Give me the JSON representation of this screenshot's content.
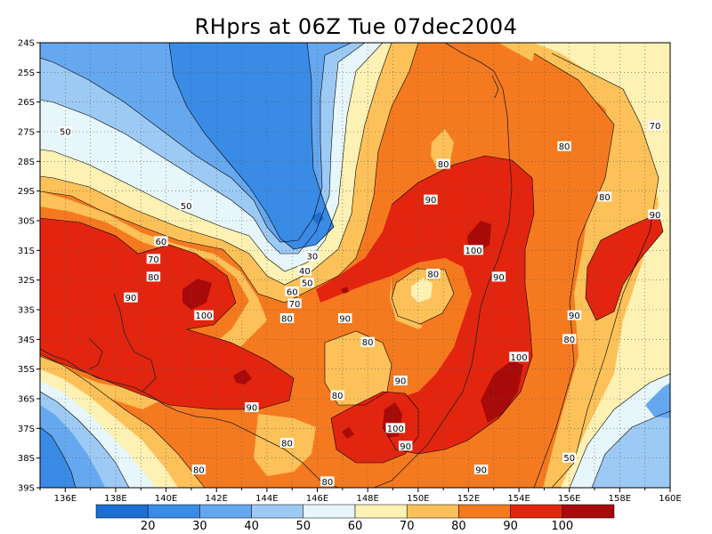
{
  "title": "RHprs at 06Z Tue 07dec2004",
  "map": {
    "lat_labels": [
      "24S",
      "25S",
      "26S",
      "27S",
      "28S",
      "29S",
      "30S",
      "31S",
      "32S",
      "33S",
      "34S",
      "35S",
      "36S",
      "37S",
      "38S",
      "39S"
    ],
    "lon_labels": [
      "136E",
      "138E",
      "140E",
      "142E",
      "144E",
      "146E",
      "148E",
      "150E",
      "152E",
      "154E",
      "156E",
      "158E",
      "160E"
    ],
    "contour_labels": [
      {
        "text": "50",
        "lon": 136.0,
        "lat": -27.0
      },
      {
        "text": "50",
        "lon": 140.8,
        "lat": -29.5
      },
      {
        "text": "60",
        "lon": 139.8,
        "lat": -30.7
      },
      {
        "text": "70",
        "lon": 139.5,
        "lat": -31.3
      },
      {
        "text": "80",
        "lon": 139.5,
        "lat": -31.9
      },
      {
        "text": "90",
        "lon": 138.6,
        "lat": -32.6
      },
      {
        "text": "100",
        "lon": 141.5,
        "lat": -33.2
      },
      {
        "text": "30",
        "lon": 145.8,
        "lat": -31.2
      },
      {
        "text": "40",
        "lon": 145.5,
        "lat": -31.7
      },
      {
        "text": "50",
        "lon": 145.6,
        "lat": -32.1
      },
      {
        "text": "60",
        "lon": 145.0,
        "lat": -32.4
      },
      {
        "text": "70",
        "lon": 145.1,
        "lat": -32.8
      },
      {
        "text": "80",
        "lon": 144.8,
        "lat": -33.3
      },
      {
        "text": "90",
        "lon": 147.1,
        "lat": -33.3
      },
      {
        "text": "80",
        "lon": 148.0,
        "lat": -34.1
      },
      {
        "text": "80",
        "lon": 146.8,
        "lat": -35.9
      },
      {
        "text": "90",
        "lon": 149.3,
        "lat": -35.4
      },
      {
        "text": "100",
        "lon": 149.1,
        "lat": -37.0
      },
      {
        "text": "90",
        "lon": 149.5,
        "lat": -37.6
      },
      {
        "text": "80",
        "lon": 144.8,
        "lat": -37.5
      },
      {
        "text": "80",
        "lon": 141.3,
        "lat": -38.4
      },
      {
        "text": "80",
        "lon": 146.4,
        "lat": -38.8
      },
      {
        "text": "90",
        "lon": 143.4,
        "lat": -36.3
      },
      {
        "text": "80",
        "lon": 151.0,
        "lat": -28.1
      },
      {
        "text": "90",
        "lon": 150.5,
        "lat": -29.3
      },
      {
        "text": "80",
        "lon": 150.6,
        "lat": -31.8
      },
      {
        "text": "100",
        "lon": 152.2,
        "lat": -31.0
      },
      {
        "text": "90",
        "lon": 153.2,
        "lat": -31.9
      },
      {
        "text": "100",
        "lon": 154.0,
        "lat": -34.6
      },
      {
        "text": "90",
        "lon": 152.5,
        "lat": -38.4
      },
      {
        "text": "80",
        "lon": 155.8,
        "lat": -27.5
      },
      {
        "text": "80",
        "lon": 157.4,
        "lat": -29.2
      },
      {
        "text": "90",
        "lon": 159.4,
        "lat": -29.8
      },
      {
        "text": "70",
        "lon": 159.4,
        "lat": -26.8
      },
      {
        "text": "90",
        "lon": 156.2,
        "lat": -33.2
      },
      {
        "text": "80",
        "lon": 156.0,
        "lat": -34.0
      },
      {
        "text": "50",
        "lon": 156.0,
        "lat": -38.0
      }
    ]
  },
  "colorbar": {
    "labels": [
      "20",
      "30",
      "40",
      "50",
      "60",
      "70",
      "80",
      "90",
      "100"
    ],
    "colors": [
      "#1c6ed0",
      "#3a8be6",
      "#66a8ef",
      "#9dcaf5",
      "#e6f6fb",
      "#fdf1b3",
      "#fdc15a",
      "#f57a1f",
      "#e3250f",
      "#a80a0a"
    ]
  },
  "palette": {
    "l10": "#1c6ed0",
    "l20": "#3a8be6",
    "l30": "#66a8ef",
    "l40": "#9dcaf5",
    "l50": "#e6f6fb",
    "l60": "#fdf1b3",
    "l70": "#fdc15a",
    "l80": "#f57a1f",
    "l90": "#e3250f",
    "l100": "#a80a0a"
  }
}
